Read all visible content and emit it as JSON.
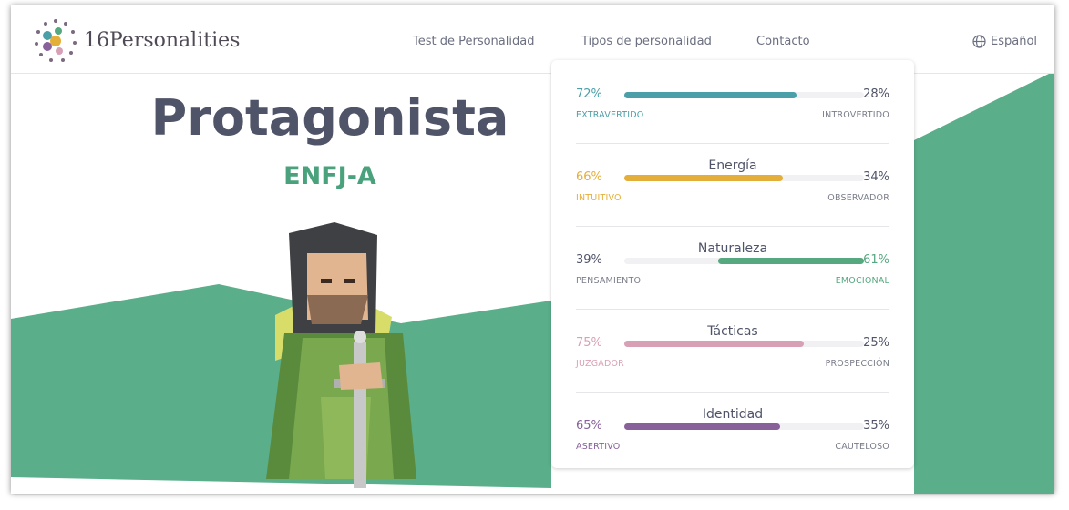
{
  "header": {
    "logo": "16Personalities",
    "nav": [
      "Test de Personalidad",
      "Tipos de personalidad",
      "Contacto"
    ],
    "language": "Español"
  },
  "hero": {
    "title": "Protagonista",
    "code": "ENFJ-A"
  },
  "traits": [
    {
      "name": null,
      "left": {
        "value": 72,
        "label": "72%"
      },
      "right": {
        "value": 28,
        "label": "28%"
      },
      "left_name": "EXTRAVERTIDO",
      "right_name": "INTROVERTIDO",
      "color": "#4a9fa8"
    },
    {
      "name": "Energía",
      "left": {
        "value": 66,
        "label": "66%"
      },
      "right": {
        "value": 34,
        "label": "34%"
      },
      "left_name": "INTUITIVO",
      "right_name": "OBSERVADOR",
      "color": "#e4ae3a"
    },
    {
      "name": "Naturaleza",
      "left": {
        "value": 39,
        "label": "39%"
      },
      "right": {
        "value": 61,
        "label": "61%"
      },
      "left_name": "PENSAMIENTO",
      "right_name": "EMOCIONAL",
      "color": "#56a880"
    },
    {
      "name": "Tácticas",
      "left": {
        "value": 75,
        "label": "75%"
      },
      "right": {
        "value": 25,
        "label": "25%"
      },
      "left_name": "JUZGADOR",
      "right_name": "PROSPECCIÓN",
      "color": "#d8a0b5"
    },
    {
      "name": "Identidad",
      "left": {
        "value": 65,
        "label": "65%"
      },
      "right": {
        "value": 35,
        "label": "35%"
      },
      "left_name": "ASERTIVO",
      "right_name": "CAUTELOSO",
      "color": "#88619a"
    }
  ]
}
